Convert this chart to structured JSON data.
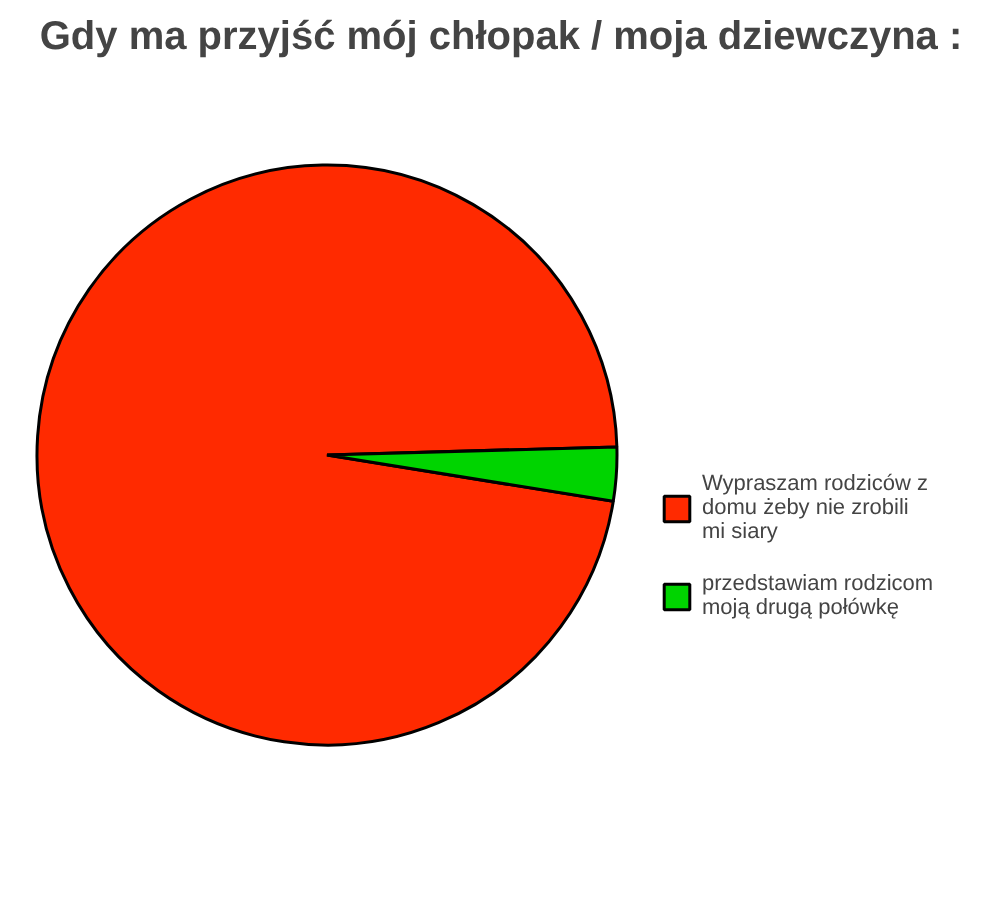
{
  "chart_data": {
    "type": "pie",
    "title": "Gdy ma przyjść mój chłopak / moja dziewczyna :",
    "categories": [
      "Wypraszam rodziców z domu żeby nie zrobili mi siary",
      "przedstawiam rodzicom moją drugą połówkę"
    ],
    "values": [
      97,
      3
    ],
    "colors": [
      "#ff2a00",
      "#00d400"
    ],
    "legend": "right"
  }
}
